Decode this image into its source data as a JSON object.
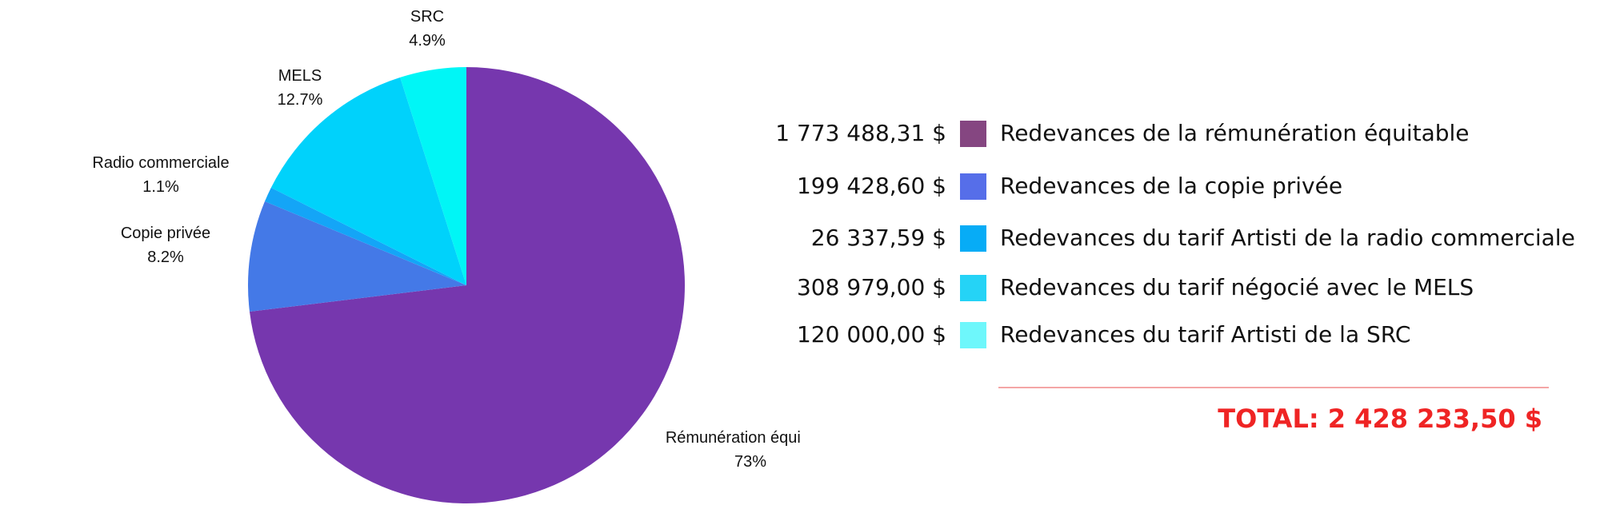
{
  "chart_data": {
    "type": "pie",
    "slices": [
      {
        "name": "Rémunération équitable",
        "pct_label": "73%",
        "value": 73.0,
        "color": "#7637ae"
      },
      {
        "name": "Copie privée",
        "pct_label": "8.2%",
        "value": 8.2,
        "color": "#4479e7"
      },
      {
        "name": "Radio commerciale",
        "pct_label": "1.1%",
        "value": 1.1,
        "color": "#14a5f7"
      },
      {
        "name": "MELS",
        "pct_label": "12.7%",
        "value": 12.7,
        "color": "#00d2fb"
      },
      {
        "name": "SRC",
        "pct_label": "4.9%",
        "value": 4.9,
        "color": "#00f6f6"
      }
    ]
  },
  "legend": [
    {
      "amount": "1 773 488,31 $",
      "label": "Redevances de la rémunération équitable",
      "color": "#854681"
    },
    {
      "amount": "199 428,60 $",
      "label": "Redevances de la copie privée",
      "color": "#566ee9"
    },
    {
      "amount": "26 337,59 $",
      "label": "Redevances du tarif Artisti de la radio commerciale",
      "color": "#07acf6"
    },
    {
      "amount": "308 979,00 $",
      "label": "Redevances du tarif négocié avec le MELS",
      "color": "#25d3f6"
    },
    {
      "amount": "120 000,00 $",
      "label": "Redevances du tarif Artisti de la SRC",
      "color": "#6ef7fb"
    }
  ],
  "total": {
    "text": "TOTAL: 2 428 233,50 $",
    "color": "#ef2424"
  }
}
